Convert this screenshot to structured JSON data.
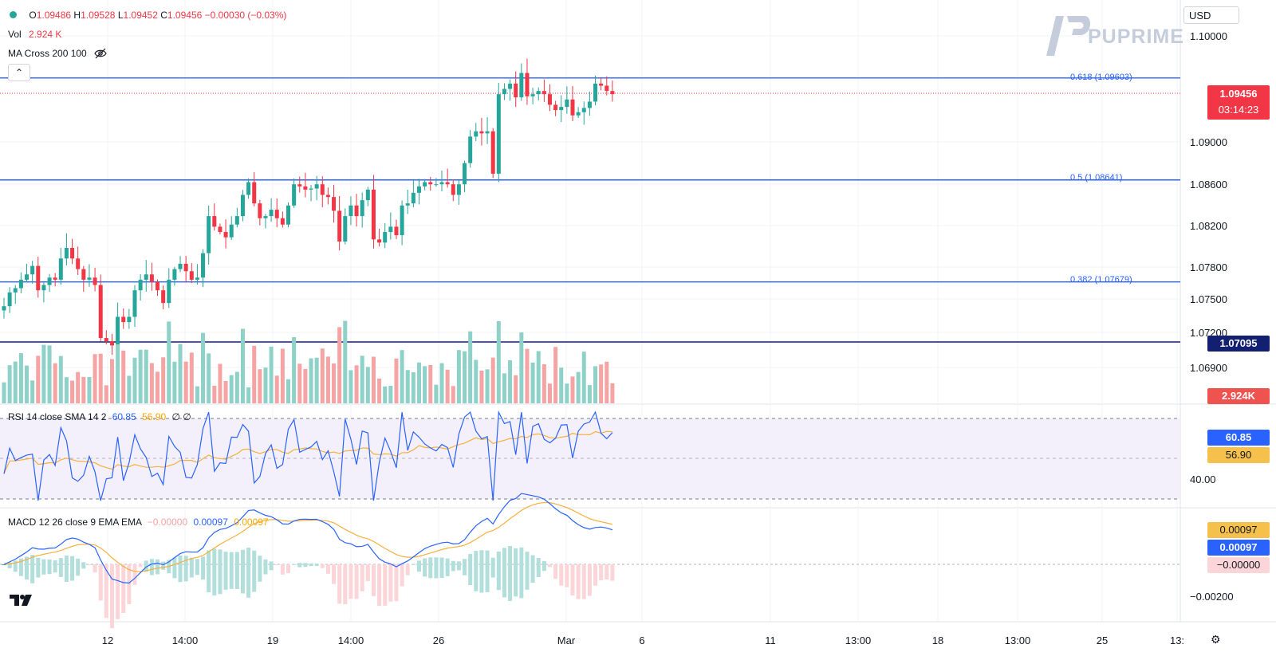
{
  "header": {
    "ohlc": {
      "o_label": "O",
      "o": "1.09486",
      "h_label": "H",
      "h": "1.09528",
      "l_label": "L",
      "l": "1.09452",
      "c_label": "C",
      "c": "1.09456",
      "change": "−0.00030 (−0.03%)"
    },
    "vol_label": "Vol",
    "vol_value": "2.924 K",
    "ma_label": "MA Cross 200 100",
    "currency": "USD",
    "brand": "PUPRIME"
  },
  "price_axis": {
    "ticks": [
      "1.10000",
      "1.09000",
      "1.08600",
      "1.08200",
      "1.07800",
      "1.07500",
      "1.07200",
      "1.06900"
    ],
    "current_price": "1.09456",
    "countdown": "03:14:23",
    "level_price": "1.07095",
    "volume_tag": "2.924K"
  },
  "fib_levels": [
    {
      "label": "0.618 (1.09603)",
      "value": 1.09603
    },
    {
      "label": "0.5 (1.08641)",
      "value": 1.08641
    },
    {
      "label": "0.382 (1.07679)",
      "value": 1.07679
    }
  ],
  "rsi": {
    "label": "RSI 14 close SMA 14 2",
    "value": "60.85",
    "sma": "56.90",
    "extra": "∅ ∅",
    "axis_tick": "40.00",
    "tag_value": "60.85",
    "tag_sma": "56.90"
  },
  "macd": {
    "label": "MACD 12 26 close 9 EMA EMA",
    "hist": "−0.00000",
    "macd": "0.00097",
    "signal": "0.00097",
    "axis_tick": "−0.00200",
    "tag_signal": "0.00097",
    "tag_macd": "0.00097",
    "tag_hist": "−0.00000"
  },
  "time_axis": [
    "12",
    "14:00",
    "19",
    "14:00",
    "26",
    "Mar",
    "6",
    "11",
    "13:00",
    "18",
    "13:00",
    "25",
    "13:"
  ],
  "colors": {
    "up": "#26a69a",
    "down": "#f23645",
    "fib": "#2962ff",
    "rsi": "#2962ff",
    "rsi_sma": "#f6b03c",
    "macd": "#2962ff",
    "signal": "#f6b03c"
  },
  "chart_data": {
    "type": "candlestick",
    "series": [
      {
        "name": "price",
        "close_path": [
          1.0745,
          1.0758,
          1.0762,
          1.077,
          1.0775,
          1.0783,
          1.076,
          1.0765,
          1.0772,
          1.077,
          1.079,
          1.08,
          1.079,
          1.078,
          1.077,
          1.0772,
          1.0765,
          1.0715,
          1.0712,
          1.0708,
          1.0735,
          1.073,
          1.0735,
          1.076,
          1.077,
          1.0775,
          1.0768,
          1.076,
          1.0748,
          1.077,
          1.078,
          1.0785,
          1.0778,
          1.077,
          1.0772,
          1.0795,
          1.083,
          1.082,
          1.0815,
          1.081,
          1.0822,
          1.083,
          1.085,
          1.0862,
          1.0842,
          1.0828,
          1.083,
          1.0836,
          1.0828,
          1.0822,
          1.084,
          1.086,
          1.0858,
          1.0855,
          1.0856,
          1.086,
          1.085,
          1.0848,
          1.0835,
          1.0806,
          1.083,
          1.084,
          1.083,
          1.0845,
          1.0855,
          1.0808,
          1.0805,
          1.0815,
          1.082,
          1.0812,
          1.084,
          1.0842,
          1.0852,
          1.0858,
          1.0862,
          1.086,
          1.086,
          1.0862,
          1.086,
          1.085,
          1.086,
          1.088,
          1.0905,
          1.091,
          1.0908,
          1.091,
          1.087,
          1.0945,
          1.095,
          1.0955,
          1.0942,
          1.0965,
          1.0943,
          1.0945,
          1.0948,
          1.0945,
          1.0935,
          1.093,
          1.0933,
          1.094,
          1.0925,
          1.0928,
          1.0932,
          1.0938,
          1.0955,
          1.0953,
          1.0948,
          1.0945
        ]
      },
      {
        "name": "RSI",
        "range": [
          40,
          80
        ]
      },
      {
        "name": "MACD",
        "range": [
          -0.0025,
          0.0025
        ]
      }
    ]
  }
}
